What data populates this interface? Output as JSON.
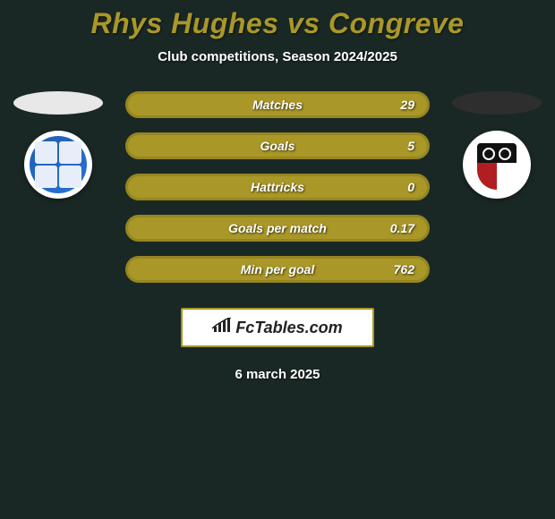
{
  "title": "Rhys Hughes vs Congreve",
  "subtitle": "Club competitions, Season 2024/2025",
  "accent_color": "#a99728",
  "title_color": "#a99728",
  "text_color": "#ffffff",
  "background_color": "#1a2825",
  "left": {
    "oval_color": "#e8e8e8",
    "crest_colors": [
      "#1e5fb3",
      "#e8eef9"
    ]
  },
  "right": {
    "oval_color": "#2e2e2e",
    "crest_colors": [
      "#111111",
      "#b01e22",
      "#ffffff"
    ]
  },
  "bars": [
    {
      "label": "Matches",
      "right_value": "29"
    },
    {
      "label": "Goals",
      "right_value": "5"
    },
    {
      "label": "Hattricks",
      "right_value": "0"
    },
    {
      "label": "Goals per match",
      "right_value": "0.17"
    },
    {
      "label": "Min per goal",
      "right_value": "762"
    }
  ],
  "bar_style": {
    "fill_color": "#a99728",
    "border_color": "#968621",
    "height": 30,
    "radius": 15,
    "label_fontsize": 14
  },
  "brand": {
    "icon": "bar-chart-icon",
    "text": "FcTables.com",
    "border_color": "#a99728",
    "bg_color": "#ffffff",
    "text_color": "#222222"
  },
  "date": "6 march 2025"
}
